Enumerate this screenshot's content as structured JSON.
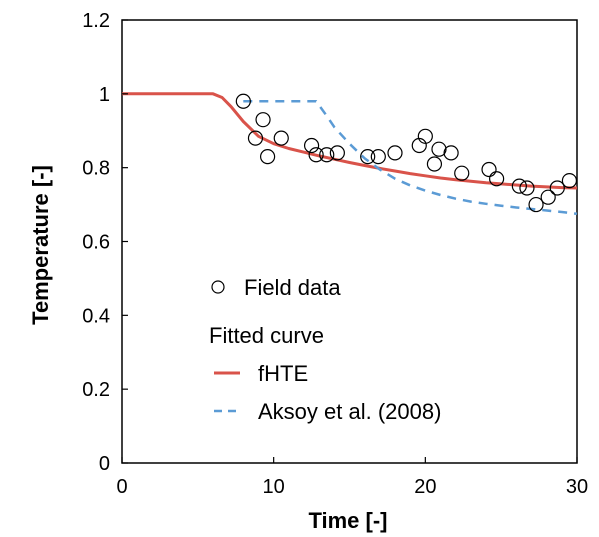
{
  "chart_data": {
    "type": "line",
    "xlabel": "Time [-]",
    "ylabel": "Temperature [-]",
    "xlim": [
      0,
      30
    ],
    "ylim": [
      0,
      1.2
    ],
    "x_ticks": [
      "0",
      "10",
      "20",
      "30"
    ],
    "y_ticks": [
      "0",
      "0.2",
      "0.4",
      "0.6",
      "0.8",
      "1",
      "1.2"
    ],
    "grid": false,
    "legend": {
      "placement": "bottom-left",
      "scatter_label": "Field data",
      "group_title": "Fitted curve",
      "series_labels": [
        "fHTE",
        "Aksoy et al. (2008)"
      ]
    },
    "colors": {
      "fhte": "#d9534a",
      "aksoy": "#5b9bd5",
      "markers": "#000000"
    },
    "series": [
      {
        "name": "Field data",
        "kind": "scatter",
        "points": [
          [
            8.0,
            0.98
          ],
          [
            8.8,
            0.88
          ],
          [
            9.3,
            0.93
          ],
          [
            9.6,
            0.83
          ],
          [
            10.5,
            0.88
          ],
          [
            12.5,
            0.86
          ],
          [
            12.8,
            0.835
          ],
          [
            13.5,
            0.835
          ],
          [
            14.2,
            0.84
          ],
          [
            16.2,
            0.83
          ],
          [
            16.9,
            0.83
          ],
          [
            18.0,
            0.84
          ],
          [
            19.6,
            0.86
          ],
          [
            20.0,
            0.885
          ],
          [
            20.6,
            0.81
          ],
          [
            20.9,
            0.85
          ],
          [
            21.7,
            0.84
          ],
          [
            22.4,
            0.785
          ],
          [
            24.2,
            0.795
          ],
          [
            24.7,
            0.77
          ],
          [
            26.2,
            0.75
          ],
          [
            26.7,
            0.745
          ],
          [
            27.3,
            0.7
          ],
          [
            28.1,
            0.72
          ],
          [
            28.7,
            0.745
          ],
          [
            29.5,
            0.765
          ]
        ]
      },
      {
        "name": "fHTE",
        "kind": "line",
        "x": [
          0,
          6.0,
          6.6,
          7.2,
          8.0,
          9.0,
          10.0,
          11.0,
          12.0,
          13.0,
          14.0,
          15.0,
          16.0,
          17.0,
          18.0,
          19.0,
          20.0,
          21.0,
          22.0,
          23.0,
          24.0,
          25.0,
          26.0,
          27.0,
          28.0,
          29.0,
          30.0
        ],
        "y": [
          1.0,
          1.0,
          0.99,
          0.965,
          0.925,
          0.885,
          0.865,
          0.852,
          0.842,
          0.832,
          0.823,
          0.814,
          0.806,
          0.798,
          0.791,
          0.784,
          0.778,
          0.772,
          0.767,
          0.763,
          0.759,
          0.756,
          0.753,
          0.75,
          0.748,
          0.746,
          0.745
        ]
      },
      {
        "name": "Aksoy et al. (2008)",
        "kind": "line",
        "dashed": true,
        "x": [
          8.0,
          9.0,
          10.0,
          11.0,
          12.0,
          12.8,
          13.5,
          14.0,
          15.0,
          16.0,
          17.0,
          18.0,
          19.0,
          20.0,
          21.0,
          22.0,
          23.0,
          24.0,
          25.0,
          26.0,
          27.0,
          28.0,
          29.0,
          30.0
        ],
        "y": [
          0.98,
          0.98,
          0.98,
          0.98,
          0.98,
          0.98,
          0.94,
          0.91,
          0.865,
          0.825,
          0.795,
          0.77,
          0.752,
          0.738,
          0.726,
          0.716,
          0.708,
          0.702,
          0.697,
          0.692,
          0.688,
          0.684,
          0.68,
          0.675
        ]
      }
    ]
  }
}
